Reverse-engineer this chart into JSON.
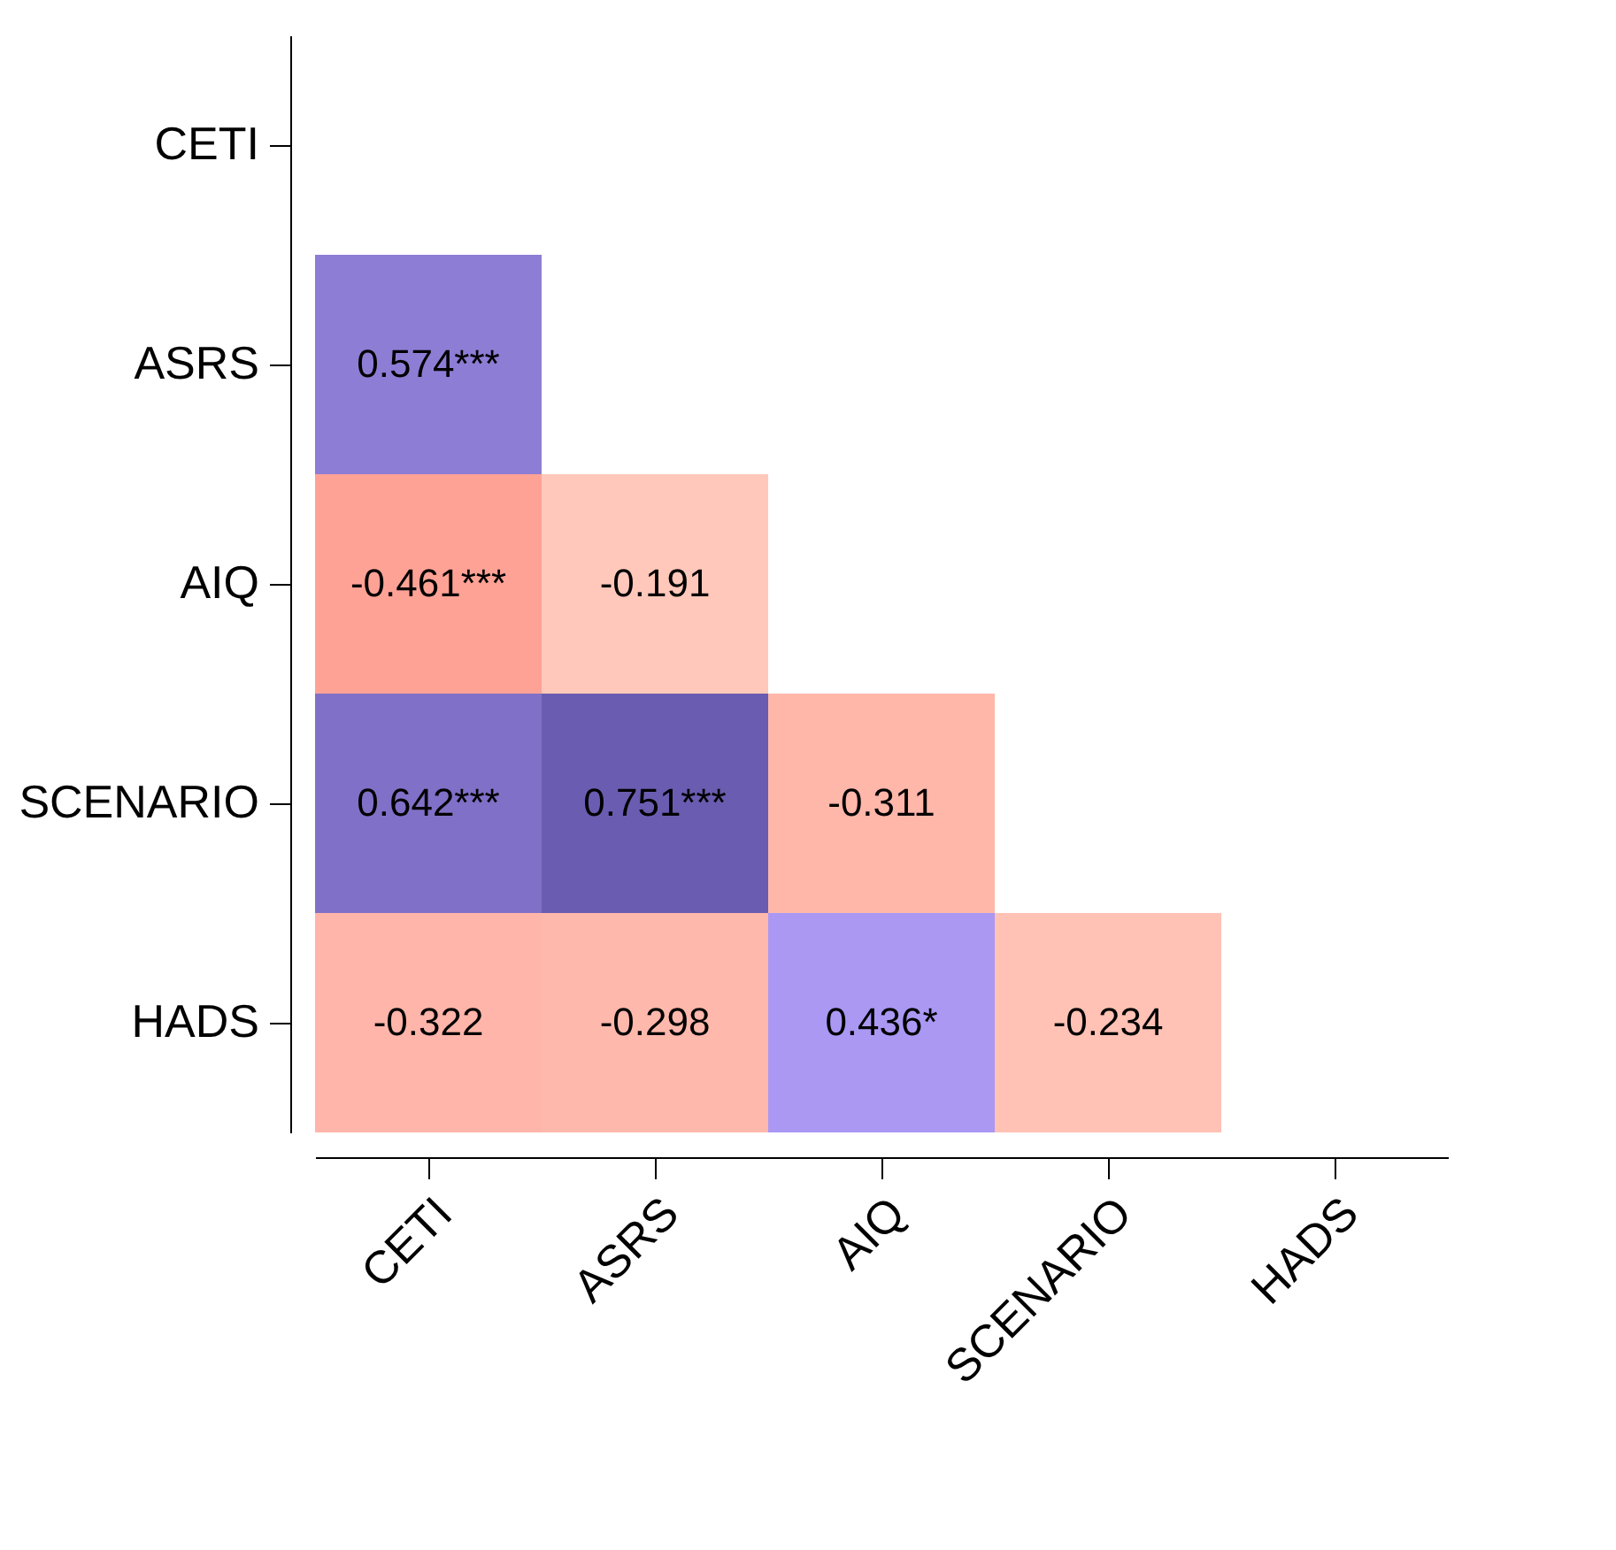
{
  "chart_data": {
    "type": "heatmap",
    "categories": [
      "CETI",
      "ASRS",
      "AIQ",
      "SCENARIO",
      "HADS"
    ],
    "y_categories": [
      "CETI",
      "ASRS",
      "AIQ",
      "SCENARIO",
      "HADS"
    ],
    "cells": [
      [
        null,
        null,
        null,
        null,
        null
      ],
      [
        0.574,
        null,
        null,
        null,
        null
      ],
      [
        -0.461,
        -0.191,
        null,
        null,
        null
      ],
      [
        0.642,
        0.751,
        -0.311,
        null,
        null
      ],
      [
        -0.322,
        -0.298,
        0.436,
        -0.234,
        null
      ]
    ],
    "cell_labels": [
      [
        null,
        null,
        null,
        null,
        null
      ],
      [
        "0.574***",
        null,
        null,
        null,
        null
      ],
      [
        "-0.461***",
        "-0.191",
        null,
        null,
        null
      ],
      [
        "0.642***",
        "0.751***",
        "-0.311",
        null,
        null
      ],
      [
        "-0.322",
        "-0.298",
        "0.436*",
        "-0.234",
        null
      ]
    ]
  }
}
